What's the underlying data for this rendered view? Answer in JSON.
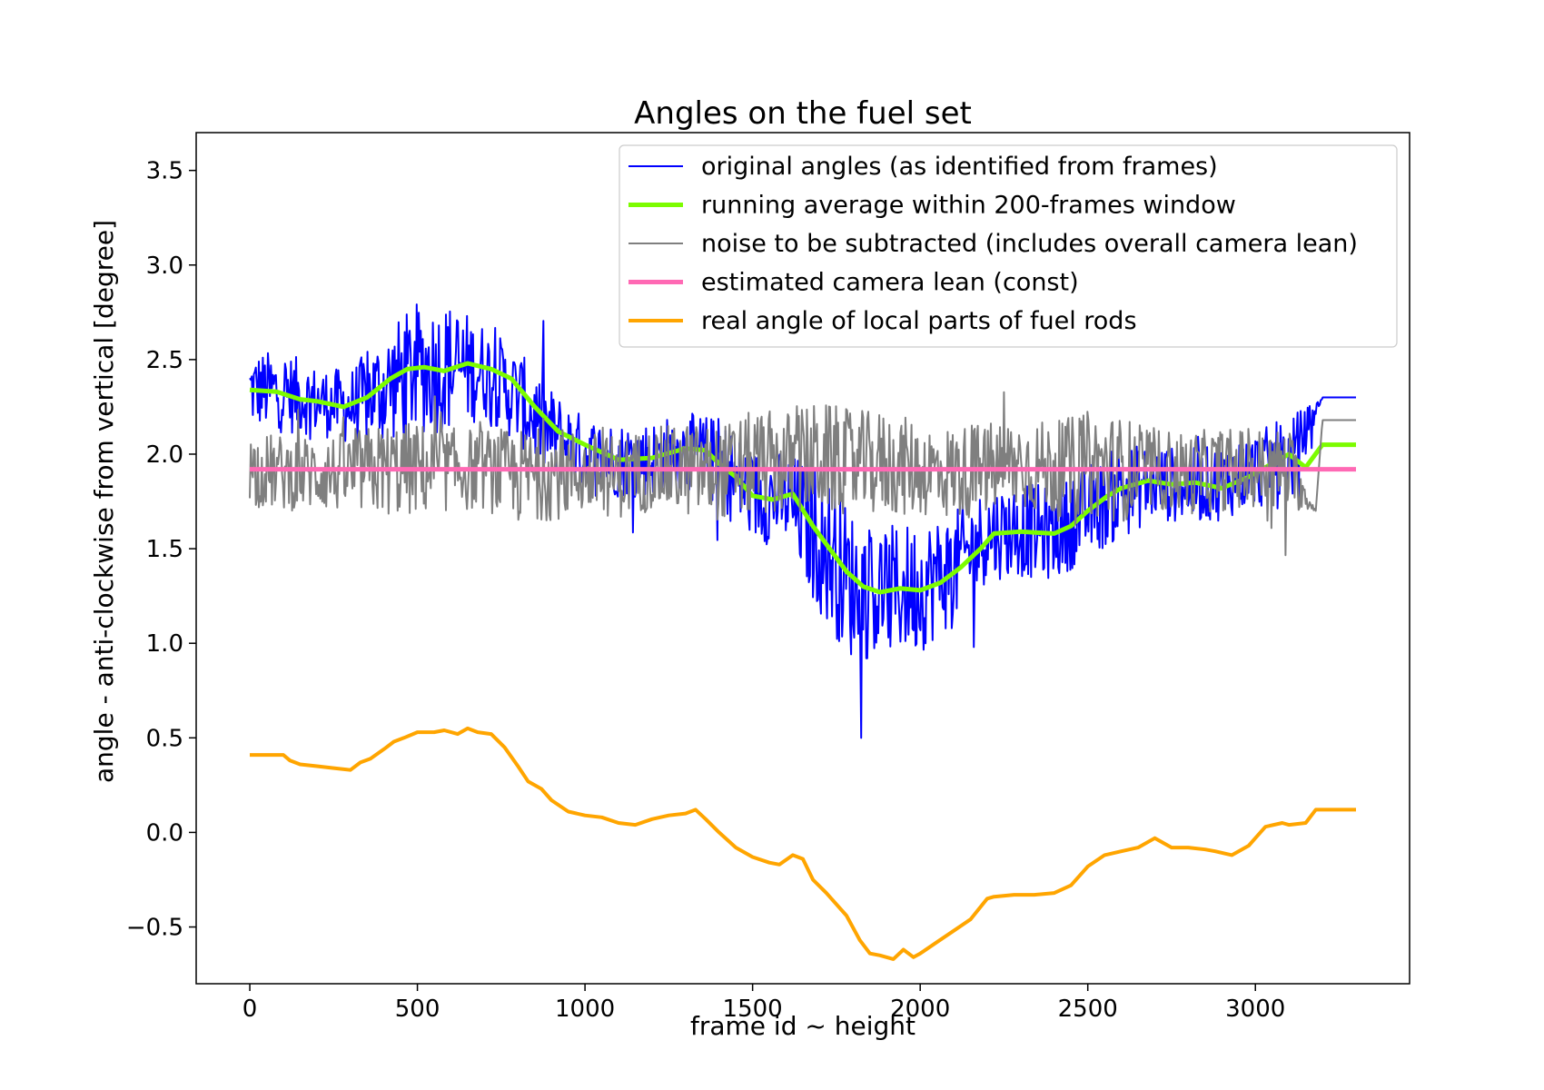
{
  "chart_data": {
    "type": "line",
    "title": "Angles on the fuel set",
    "xlabel": "frame id ~ height",
    "ylabel": "angle - anti-clockwise from vertical [degree]",
    "xlim": [
      -160,
      3460
    ],
    "ylim": [
      -0.8,
      3.7
    ],
    "xticks": [
      0,
      500,
      1000,
      1500,
      2000,
      2500,
      3000
    ],
    "xtick_labels": [
      "0",
      "500",
      "1000",
      "1500",
      "2000",
      "2500",
      "3000"
    ],
    "yticks": [
      -0.5,
      0.0,
      0.5,
      1.0,
      1.5,
      2.0,
      2.5,
      3.0,
      3.5
    ],
    "ytick_labels": [
      "−0.5",
      "0.0",
      "0.5",
      "1.0",
      "1.5",
      "2.0",
      "2.5",
      "3.0",
      "3.5"
    ],
    "grid": false,
    "legend_position": "top-right",
    "camera_lean": 1.92,
    "series": [
      {
        "name": "original angles (as identified from frames)",
        "color": "#0000ff",
        "style": "noisy",
        "x": [
          0,
          100,
          200,
          300,
          400,
          500,
          600,
          700,
          800,
          900,
          1000,
          1100,
          1200,
          1300,
          1400,
          1500,
          1600,
          1700,
          1800,
          1900,
          2000,
          2100,
          2200,
          2300,
          2400,
          2500,
          2600,
          2700,
          2800,
          2900,
          3000,
          3100,
          3200,
          3300
        ],
        "y": [
          2.34,
          2.33,
          2.28,
          2.25,
          2.35,
          2.45,
          2.46,
          2.44,
          2.3,
          2.1,
          2.0,
          1.97,
          1.98,
          2.02,
          1.95,
          1.78,
          1.76,
          1.55,
          1.3,
          1.27,
          1.3,
          1.4,
          1.58,
          1.6,
          1.58,
          1.7,
          1.8,
          1.85,
          1.83,
          1.85,
          1.92,
          1.95,
          2.3,
          2.3
        ],
        "amplitude": [
          0.2,
          0.22,
          0.18,
          0.2,
          0.3,
          0.35,
          0.35,
          0.25,
          0.25,
          0.25,
          0.2,
          0.2,
          0.2,
          0.2,
          0.25,
          0.25,
          0.25,
          0.4,
          0.4,
          0.35,
          0.35,
          0.3,
          0.25,
          0.25,
          0.25,
          0.25,
          0.25,
          0.2,
          0.2,
          0.2,
          0.2,
          0.25,
          0,
          0
        ]
      },
      {
        "name": "running average within 200-frames window",
        "color": "#7cfc00",
        "style": "thick",
        "x": [
          0,
          80,
          150,
          200,
          280,
          350,
          420,
          470,
          520,
          580,
          650,
          720,
          780,
          850,
          920,
          1000,
          1100,
          1200,
          1300,
          1360,
          1400,
          1450,
          1500,
          1560,
          1620,
          1680,
          1730,
          1780,
          1830,
          1880,
          1940,
          2000,
          2060,
          2120,
          2180,
          2220,
          2300,
          2400,
          2450,
          2500,
          2560,
          2600,
          2680,
          2750,
          2820,
          2900,
          2980,
          3050,
          3100,
          3150,
          3200,
          3300
        ],
        "y": [
          2.34,
          2.33,
          2.29,
          2.28,
          2.25,
          2.3,
          2.4,
          2.45,
          2.46,
          2.44,
          2.48,
          2.45,
          2.4,
          2.25,
          2.12,
          2.05,
          1.97,
          1.98,
          2.03,
          2.02,
          1.95,
          1.88,
          1.78,
          1.76,
          1.79,
          1.62,
          1.5,
          1.38,
          1.3,
          1.27,
          1.29,
          1.28,
          1.32,
          1.4,
          1.5,
          1.58,
          1.59,
          1.58,
          1.62,
          1.7,
          1.78,
          1.82,
          1.86,
          1.84,
          1.85,
          1.82,
          1.88,
          1.95,
          2.0,
          1.93,
          2.05,
          2.05
        ]
      },
      {
        "name": "noise to be subtracted (includes overall camera lean)",
        "color": "#7f7f7f",
        "style": "noisy",
        "x": [
          0,
          100,
          200,
          300,
          400,
          500,
          600,
          700,
          800,
          900,
          1000,
          1100,
          1200,
          1300,
          1400,
          1500,
          1600,
          1700,
          1800,
          1900,
          2000,
          2100,
          2200,
          2300,
          2400,
          2500,
          2600,
          2700,
          2800,
          2900,
          3000,
          3100,
          3180,
          3200,
          3300
        ],
        "y": [
          1.92,
          1.9,
          1.9,
          1.9,
          1.92,
          1.92,
          1.92,
          1.92,
          1.88,
          1.9,
          1.9,
          1.88,
          1.92,
          1.92,
          1.9,
          1.95,
          1.95,
          1.98,
          1.95,
          1.95,
          1.92,
          1.9,
          1.92,
          1.95,
          1.92,
          1.95,
          1.92,
          1.92,
          1.9,
          1.92,
          1.92,
          1.92,
          1.7,
          2.18,
          2.18
        ],
        "amplitude": [
          0.2,
          0.2,
          0.2,
          0.22,
          0.25,
          0.25,
          0.22,
          0.22,
          0.25,
          0.25,
          0.22,
          0.22,
          0.22,
          0.25,
          0.25,
          0.28,
          0.28,
          0.3,
          0.28,
          0.28,
          0.25,
          0.25,
          0.25,
          0.25,
          0.25,
          0.28,
          0.28,
          0.22,
          0.22,
          0.22,
          0.22,
          0.22,
          0,
          0,
          0
        ]
      },
      {
        "name": "estimated camera lean (const)",
        "color": "#ff69b4",
        "style": "thick",
        "x": [
          0,
          3300
        ],
        "y": [
          1.92,
          1.92
        ]
      },
      {
        "name": "real angle of local parts of fuel rods",
        "color": "#ffa500",
        "style": "medium",
        "x": [
          0,
          50,
          100,
          120,
          150,
          200,
          250,
          300,
          330,
          360,
          400,
          430,
          460,
          500,
          550,
          580,
          620,
          650,
          680,
          720,
          760,
          800,
          830,
          870,
          900,
          950,
          1000,
          1050,
          1100,
          1150,
          1200,
          1250,
          1300,
          1330,
          1360,
          1400,
          1450,
          1500,
          1550,
          1580,
          1620,
          1650,
          1680,
          1720,
          1780,
          1820,
          1850,
          1880,
          1920,
          1950,
          1980,
          2000,
          2050,
          2100,
          2150,
          2200,
          2220,
          2280,
          2340,
          2400,
          2450,
          2500,
          2550,
          2600,
          2650,
          2700,
          2750,
          2800,
          2850,
          2880,
          2930,
          2980,
          3000,
          3030,
          3080,
          3100,
          3150,
          3180,
          3300
        ],
        "y": [
          0.41,
          0.41,
          0.41,
          0.38,
          0.36,
          0.35,
          0.34,
          0.33,
          0.37,
          0.39,
          0.44,
          0.48,
          0.5,
          0.53,
          0.53,
          0.54,
          0.52,
          0.55,
          0.53,
          0.52,
          0.45,
          0.35,
          0.27,
          0.23,
          0.17,
          0.11,
          0.09,
          0.08,
          0.05,
          0.04,
          0.07,
          0.09,
          0.1,
          0.12,
          0.07,
          0.0,
          -0.08,
          -0.13,
          -0.16,
          -0.17,
          -0.12,
          -0.14,
          -0.25,
          -0.32,
          -0.44,
          -0.57,
          -0.64,
          -0.65,
          -0.67,
          -0.62,
          -0.66,
          -0.64,
          -0.58,
          -0.52,
          -0.46,
          -0.35,
          -0.34,
          -0.33,
          -0.33,
          -0.32,
          -0.28,
          -0.18,
          -0.12,
          -0.1,
          -0.08,
          -0.03,
          -0.08,
          -0.08,
          -0.09,
          -0.1,
          -0.12,
          -0.07,
          -0.03,
          0.03,
          0.05,
          0.04,
          0.05,
          0.12,
          0.12
        ]
      }
    ]
  }
}
